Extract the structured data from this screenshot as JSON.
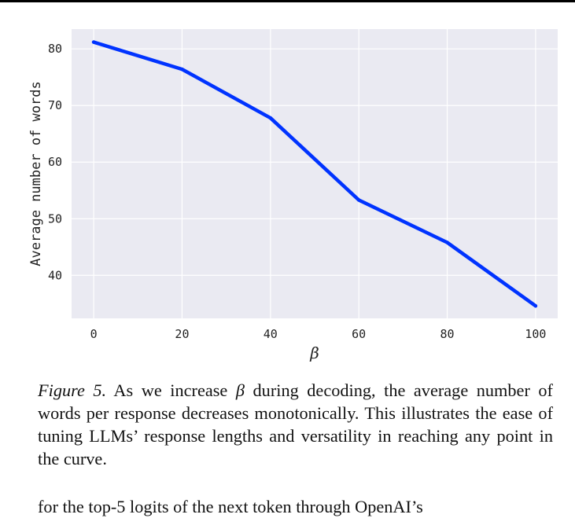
{
  "chart_data": {
    "type": "line",
    "title": "",
    "xlabel": "β",
    "ylabel": "Average number of words",
    "x": [
      0,
      20,
      40,
      60,
      80,
      100
    ],
    "series": [
      {
        "values": [
          81.2,
          76.4,
          67.8,
          53.3,
          45.8,
          34.6
        ],
        "color": "#0033ff"
      }
    ],
    "xticks": [
      0,
      20,
      40,
      60,
      80,
      100
    ],
    "yticks": [
      40,
      50,
      60,
      70,
      80
    ],
    "xlim": [
      -5,
      105
    ],
    "ylim": [
      32.4,
      83.5
    ],
    "grid": true,
    "background": "#eaeaf2",
    "grid_color": "#ffffff"
  },
  "caption": {
    "label": "Figure 5.",
    "text_before_symbol": " As we increase ",
    "symbol": "β",
    "text_after_symbol": " during decoding, the average number of words per response decreases monotonically. This illustrates the ease of tuning LLMs’ response lengths and versatility in reaching any point in the curve."
  },
  "body_text": "for the top-5 logits of the next token through OpenAI’s"
}
